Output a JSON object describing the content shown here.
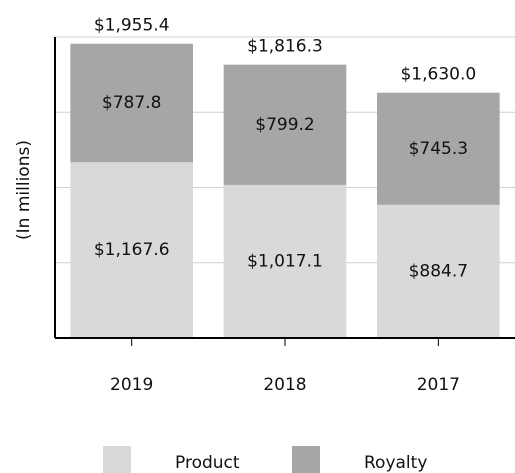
{
  "chart_data": {
    "type": "stacked_bar",
    "y_label": "(In millions)",
    "categories": [
      "2019",
      "2018",
      "2017"
    ],
    "series": [
      {
        "name": "Product",
        "color": "#d9d9d9",
        "values": [
          1167.6,
          1017.1,
          884.7
        ],
        "value_labels": [
          "$1,167.6",
          "$1,017.1",
          "$884.7"
        ]
      },
      {
        "name": "Royalty",
        "color": "#a6a6a6",
        "values": [
          787.8,
          799.2,
          745.3
        ],
        "value_labels": [
          "$787.8",
          "$799.2",
          "$745.3"
        ]
      }
    ],
    "totals": [
      1955.4,
      1816.3,
      1630.0
    ],
    "total_labels": [
      "$1,955.4",
      "$1,816.3",
      "$1,630.0"
    ],
    "ylim": [
      0,
      2000
    ],
    "yticks": [
      0,
      500,
      1000,
      1500,
      2000
    ],
    "grid": true
  }
}
